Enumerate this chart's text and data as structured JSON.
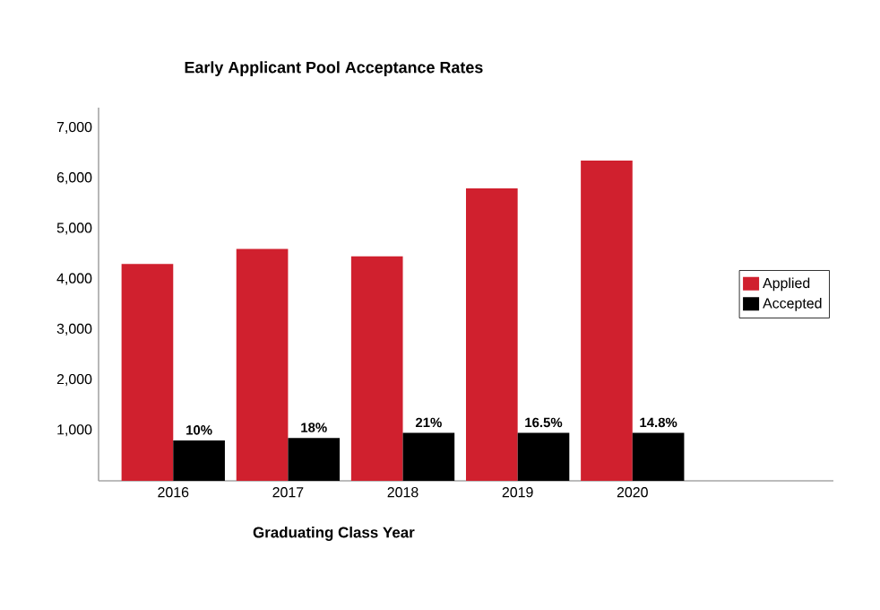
{
  "chart_data": {
    "type": "bar",
    "title": "Early Applicant Pool Acceptance Rates",
    "xlabel": "Graduating Class Year",
    "categories": [
      "2016",
      "2017",
      "2018",
      "2019",
      "2020"
    ],
    "series": [
      {
        "name": "Applied",
        "color": "#d0202e",
        "values": [
          4300,
          4600,
          4450,
          5800,
          6350
        ]
      },
      {
        "name": "Accepted",
        "color": "#000000",
        "values": [
          800,
          850,
          950,
          950,
          950
        ]
      }
    ],
    "annotations": [
      {
        "text": "10%",
        "x": "2016",
        "y": 800
      },
      {
        "text": "18%",
        "x": "2017",
        "y": 850
      },
      {
        "text": "21%",
        "x": "2018",
        "y": 950
      },
      {
        "text": "16.5%",
        "x": "2019",
        "y": 950
      },
      {
        "text": "14.8%",
        "x": "2020",
        "y": 950
      }
    ],
    "ylim": [
      0,
      7400
    ],
    "yticks": [
      {
        "value": 1000,
        "label": "1,000"
      },
      {
        "value": 2000,
        "label": "2,000"
      },
      {
        "value": 3000,
        "label": "3,000"
      },
      {
        "value": 4000,
        "label": "4,000"
      },
      {
        "value": 5000,
        "label": "5,000"
      },
      {
        "value": 6000,
        "label": "6,000"
      },
      {
        "value": 7000,
        "label": "7,000"
      }
    ],
    "grid": false,
    "legend": "right"
  }
}
